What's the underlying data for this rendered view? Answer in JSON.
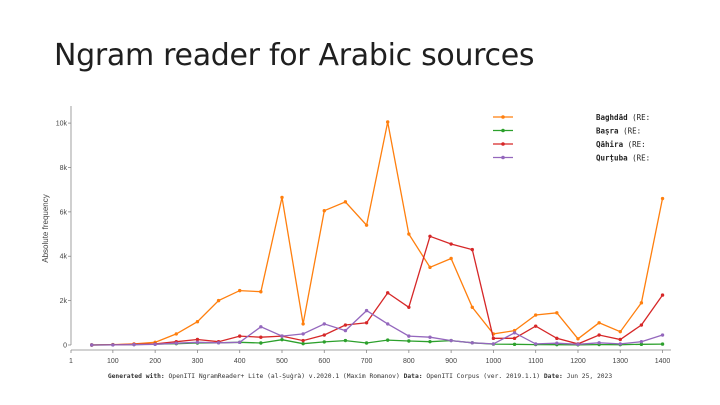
{
  "slide_title": "Ngram reader for Arabic sources",
  "footer": {
    "generated_label": "Generated with:",
    "generated_value": "OpenITI NgramReader+ Lite (al-Ṣuġrà) v.2020.1 (Maxim Romanov)",
    "data_label": "Data:",
    "data_value": "OpenITI Corpus (ver. 2019.1.1)",
    "date_label": "Date:",
    "date_value": "Jun 25, 2023"
  },
  "chart_data": {
    "type": "line",
    "title": "",
    "xlabel": "",
    "ylabel": "Absolute frequency",
    "xlim": [
      1,
      1420
    ],
    "ylim": [
      0,
      10500
    ],
    "x_ticks": [
      1,
      100,
      200,
      300,
      400,
      500,
      600,
      700,
      800,
      900,
      1000,
      1100,
      1200,
      1300,
      1400
    ],
    "y_ticks": [
      0,
      2000,
      4000,
      6000,
      8000,
      10000
    ],
    "y_tick_labels": [
      "0",
      "2k",
      "4k",
      "6k",
      "8k",
      "10k"
    ],
    "grid": false,
    "legend_position": "top-right",
    "x": [
      50,
      100,
      150,
      200,
      250,
      300,
      350,
      400,
      450,
      500,
      550,
      600,
      650,
      700,
      750,
      800,
      850,
      900,
      950,
      1000,
      1050,
      1100,
      1150,
      1200,
      1250,
      1300,
      1350,
      1400
    ],
    "series": [
      {
        "name": "Baghdād",
        "tag": "(RE:",
        "color": "#ff7f0e",
        "values": [
          0,
          20,
          50,
          120,
          500,
          1050,
          2000,
          2450,
          2400,
          6650,
          950,
          6050,
          6450,
          5400,
          10050,
          5000,
          3500,
          3900,
          1700,
          500,
          650,
          1350,
          1450,
          280,
          1000,
          600,
          1900,
          6600
        ]
      },
      {
        "name": "Baṣra",
        "tag": "(RE:",
        "color": "#2ca02c",
        "values": [
          0,
          10,
          20,
          40,
          60,
          90,
          100,
          120,
          90,
          240,
          60,
          140,
          200,
          90,
          220,
          180,
          150,
          200,
          100,
          40,
          30,
          20,
          15,
          10,
          20,
          15,
          30,
          40
        ]
      },
      {
        "name": "Qāhira",
        "tag": "(RE:",
        "color": "#d62728",
        "values": [
          0,
          10,
          30,
          50,
          150,
          250,
          150,
          400,
          350,
          400,
          200,
          450,
          900,
          1000,
          2350,
          1700,
          4900,
          4550,
          4300,
          300,
          300,
          850,
          300,
          50,
          450,
          250,
          900,
          2250
        ]
      },
      {
        "name": "Qurṭuba",
        "tag": "(RE:",
        "color": "#9467bd",
        "values": [
          0,
          5,
          15,
          30,
          80,
          120,
          100,
          120,
          820,
          400,
          500,
          950,
          650,
          1550,
          950,
          400,
          350,
          200,
          100,
          50,
          550,
          50,
          80,
          30,
          100,
          50,
          150,
          450
        ]
      }
    ]
  }
}
